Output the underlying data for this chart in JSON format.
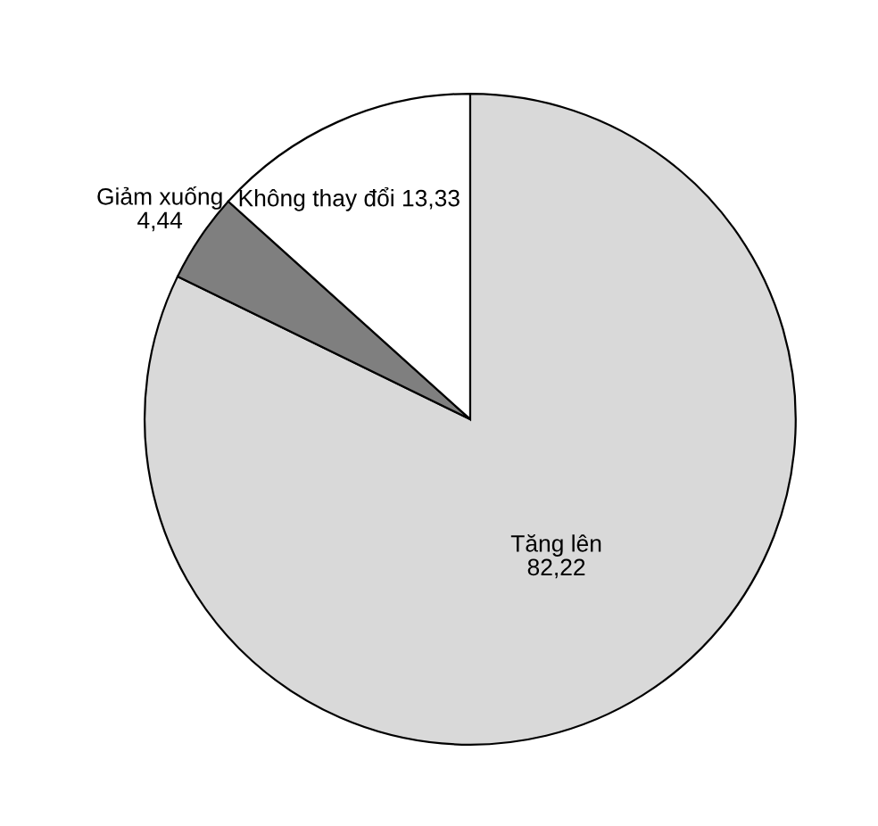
{
  "chart_data": {
    "type": "pie",
    "categories": [
      "Tăng lên",
      "Giảm xuống",
      "Không thay đổi"
    ],
    "values": [
      82.22,
      4.44,
      13.33
    ],
    "value_labels": [
      "82,22",
      "4,44",
      "13,33"
    ],
    "colors": [
      "#d9d9d9",
      "#7f7f7f",
      "#ffffff"
    ]
  }
}
